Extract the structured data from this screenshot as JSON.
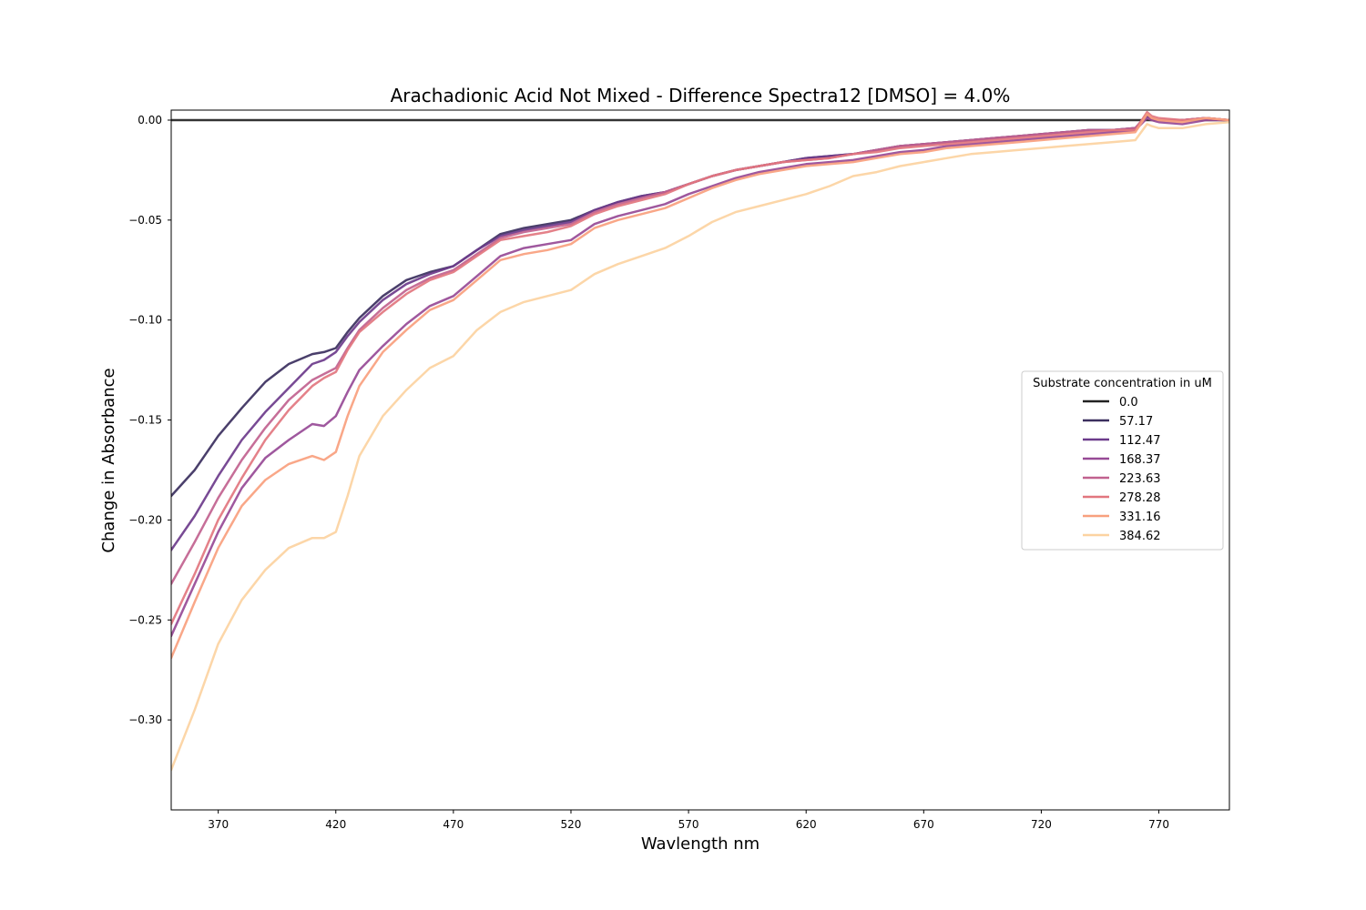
{
  "chart_data": {
    "type": "line",
    "title": "Arachadionic Acid Not Mixed - Difference Spectra12 [DMSO] = 4.0%",
    "xlabel": "Wavlength nm",
    "ylabel": "Change in Absorbance",
    "xlim": [
      350,
      800
    ],
    "ylim": [
      -0.345,
      0.005
    ],
    "xticks": [
      370,
      420,
      470,
      520,
      570,
      620,
      670,
      720,
      770
    ],
    "xtick_labels": [
      "370",
      "420",
      "470",
      "520",
      "570",
      "620",
      "670",
      "720",
      "770"
    ],
    "yticks": [
      0.0,
      -0.05,
      -0.1,
      -0.15,
      -0.2,
      -0.25,
      -0.3
    ],
    "ytick_labels": [
      "0.00",
      "−0.05",
      "−0.10",
      "−0.15",
      "−0.20",
      "−0.25",
      "−0.30"
    ],
    "grid": false,
    "legend": {
      "title": "Substrate concentration in uM",
      "placement": "center-right"
    },
    "x": [
      350,
      360,
      370,
      380,
      390,
      400,
      410,
      415,
      420,
      425,
      430,
      440,
      450,
      460,
      470,
      480,
      490,
      500,
      510,
      520,
      530,
      540,
      550,
      560,
      570,
      580,
      590,
      600,
      610,
      620,
      630,
      640,
      650,
      660,
      670,
      680,
      690,
      700,
      710,
      720,
      730,
      740,
      750,
      760,
      765,
      767,
      770,
      780,
      790,
      800
    ],
    "series": [
      {
        "name": "0.0",
        "color": "#222222",
        "values": [
          0,
          0,
          0,
          0,
          0,
          0,
          0,
          0,
          0,
          0,
          0,
          0,
          0,
          0,
          0,
          0,
          0,
          0,
          0,
          0,
          0,
          0,
          0,
          0,
          0,
          0,
          0,
          0,
          0,
          0,
          0,
          0,
          0,
          0,
          0,
          0,
          0,
          0,
          0,
          0,
          0,
          0,
          0,
          0,
          0,
          0,
          0,
          0,
          0,
          0
        ]
      },
      {
        "name": "57.17",
        "color": "#3b2f5e",
        "values": [
          -0.188,
          -0.175,
          -0.158,
          -0.144,
          -0.131,
          -0.122,
          -0.117,
          -0.116,
          -0.114,
          -0.106,
          -0.099,
          -0.088,
          -0.08,
          -0.076,
          -0.073,
          -0.065,
          -0.057,
          -0.054,
          -0.052,
          -0.05,
          -0.045,
          -0.041,
          -0.038,
          -0.036,
          -0.032,
          -0.028,
          -0.025,
          -0.023,
          -0.021,
          -0.019,
          -0.018,
          -0.017,
          -0.015,
          -0.013,
          -0.012,
          -0.011,
          -0.01,
          -0.009,
          -0.008,
          -0.007,
          -0.006,
          -0.005,
          -0.005,
          -0.004,
          0.002,
          0.001,
          0.0,
          0.0,
          0.001,
          0.0
        ]
      },
      {
        "name": "112.47",
        "color": "#6c3b8b",
        "values": [
          -0.215,
          -0.198,
          -0.178,
          -0.16,
          -0.146,
          -0.134,
          -0.122,
          -0.12,
          -0.116,
          -0.108,
          -0.101,
          -0.09,
          -0.082,
          -0.077,
          -0.073,
          -0.065,
          -0.058,
          -0.055,
          -0.053,
          -0.051,
          -0.045,
          -0.041,
          -0.038,
          -0.036,
          -0.032,
          -0.028,
          -0.025,
          -0.023,
          -0.021,
          -0.019,
          -0.018,
          -0.017,
          -0.015,
          -0.013,
          -0.012,
          -0.011,
          -0.01,
          -0.009,
          -0.008,
          -0.007,
          -0.006,
          -0.005,
          -0.005,
          -0.004,
          0.002,
          0.001,
          0.0,
          0.0,
          0.001,
          0.0
        ]
      },
      {
        "name": "168.37",
        "color": "#974a96",
        "values": [
          -0.258,
          -0.232,
          -0.206,
          -0.184,
          -0.169,
          -0.16,
          -0.152,
          -0.153,
          -0.148,
          -0.136,
          -0.125,
          -0.113,
          -0.102,
          -0.093,
          -0.088,
          -0.078,
          -0.068,
          -0.064,
          -0.062,
          -0.06,
          -0.052,
          -0.048,
          -0.045,
          -0.042,
          -0.037,
          -0.033,
          -0.029,
          -0.026,
          -0.024,
          -0.022,
          -0.021,
          -0.02,
          -0.018,
          -0.016,
          -0.015,
          -0.013,
          -0.012,
          -0.011,
          -0.01,
          -0.009,
          -0.008,
          -0.007,
          -0.006,
          -0.005,
          0.001,
          0.0,
          -0.001,
          -0.002,
          0.0,
          0.0
        ]
      },
      {
        "name": "223.63",
        "color": "#c1628f",
        "values": [
          -0.232,
          -0.211,
          -0.189,
          -0.17,
          -0.154,
          -0.14,
          -0.13,
          -0.127,
          -0.124,
          -0.114,
          -0.105,
          -0.094,
          -0.085,
          -0.079,
          -0.075,
          -0.067,
          -0.059,
          -0.056,
          -0.054,
          -0.052,
          -0.046,
          -0.042,
          -0.039,
          -0.036,
          -0.032,
          -0.028,
          -0.025,
          -0.023,
          -0.021,
          -0.02,
          -0.019,
          -0.017,
          -0.015,
          -0.013,
          -0.012,
          -0.011,
          -0.01,
          -0.009,
          -0.008,
          -0.007,
          -0.006,
          -0.005,
          -0.005,
          -0.004,
          0.003,
          0.001,
          0.0,
          0.0,
          0.001,
          0.0
        ]
      },
      {
        "name": "278.28",
        "color": "#e2767f",
        "values": [
          -0.252,
          -0.227,
          -0.2,
          -0.179,
          -0.16,
          -0.145,
          -0.133,
          -0.129,
          -0.126,
          -0.115,
          -0.106,
          -0.096,
          -0.087,
          -0.08,
          -0.076,
          -0.068,
          -0.06,
          -0.058,
          -0.056,
          -0.053,
          -0.047,
          -0.043,
          -0.04,
          -0.037,
          -0.032,
          -0.028,
          -0.025,
          -0.023,
          -0.021,
          -0.02,
          -0.019,
          -0.017,
          -0.016,
          -0.014,
          -0.013,
          -0.012,
          -0.011,
          -0.01,
          -0.009,
          -0.008,
          -0.007,
          -0.006,
          -0.005,
          -0.005,
          0.004,
          0.002,
          0.001,
          0.0,
          0.001,
          0.0
        ]
      },
      {
        "name": "331.16",
        "color": "#f8a07e",
        "values": [
          -0.269,
          -0.241,
          -0.214,
          -0.193,
          -0.18,
          -0.172,
          -0.168,
          -0.17,
          -0.166,
          -0.148,
          -0.133,
          -0.116,
          -0.105,
          -0.095,
          -0.09,
          -0.08,
          -0.07,
          -0.067,
          -0.065,
          -0.062,
          -0.054,
          -0.05,
          -0.047,
          -0.044,
          -0.039,
          -0.034,
          -0.03,
          -0.027,
          -0.025,
          -0.023,
          -0.022,
          -0.021,
          -0.019,
          -0.017,
          -0.016,
          -0.014,
          -0.013,
          -0.012,
          -0.011,
          -0.01,
          -0.009,
          -0.008,
          -0.007,
          -0.006,
          0.003,
          0.001,
          0.0,
          -0.001,
          0.001,
          0.0
        ]
      },
      {
        "name": "384.62",
        "color": "#fcd3a1",
        "values": [
          -0.325,
          -0.295,
          -0.262,
          -0.24,
          -0.225,
          -0.214,
          -0.209,
          -0.209,
          -0.206,
          -0.188,
          -0.168,
          -0.148,
          -0.135,
          -0.124,
          -0.118,
          -0.105,
          -0.096,
          -0.091,
          -0.088,
          -0.085,
          -0.077,
          -0.072,
          -0.068,
          -0.064,
          -0.058,
          -0.051,
          -0.046,
          -0.043,
          -0.04,
          -0.037,
          -0.033,
          -0.028,
          -0.026,
          -0.023,
          -0.021,
          -0.019,
          -0.017,
          -0.016,
          -0.015,
          -0.014,
          -0.013,
          -0.012,
          -0.011,
          -0.01,
          -0.002,
          -0.003,
          -0.004,
          -0.004,
          -0.002,
          -0.001
        ]
      }
    ]
  }
}
